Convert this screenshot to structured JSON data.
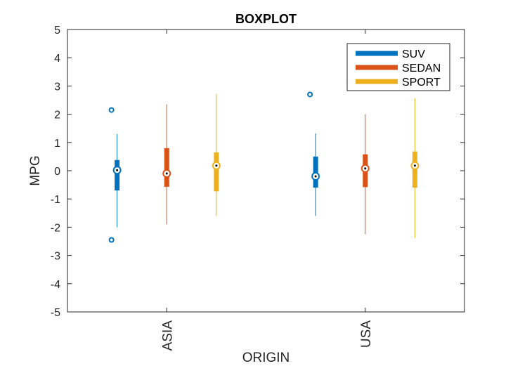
{
  "chart_data": {
    "type": "boxplot",
    "title": "BOXPLOT",
    "xlabel": "ORIGIN",
    "ylabel": "MPG",
    "ylim": [
      -5,
      5
    ],
    "yticks": [
      -5,
      -4,
      -3,
      -2,
      -1,
      0,
      1,
      2,
      3,
      4,
      5
    ],
    "categories": [
      "ASIA",
      "USA"
    ],
    "legend_position": "top-right",
    "series": [
      {
        "name": "SUV",
        "color": "#0072BD",
        "boxes": [
          {
            "whisker_low": -2.0,
            "q1": -0.7,
            "median": 0.02,
            "q3": 0.38,
            "whisker_high": 1.3,
            "outliers": [
              2.15,
              -2.45
            ]
          },
          {
            "whisker_low": -1.6,
            "q1": -0.6,
            "median": -0.2,
            "q3": 0.5,
            "whisker_high": 1.32,
            "outliers": [
              2.7
            ]
          }
        ]
      },
      {
        "name": "SEDAN",
        "color": "#D95319",
        "boxes": [
          {
            "whisker_low": -1.9,
            "q1": -0.57,
            "median": -0.1,
            "q3": 0.8,
            "whisker_high": 2.35,
            "outliers": []
          },
          {
            "whisker_low": -2.25,
            "q1": -0.58,
            "median": 0.08,
            "q3": 0.58,
            "whisker_high": 2.0,
            "outliers": []
          }
        ]
      },
      {
        "name": "SPORT",
        "color": "#EDB120",
        "boxes": [
          {
            "whisker_low": -1.6,
            "q1": -0.73,
            "median": 0.18,
            "q3": 0.65,
            "whisker_high": 2.72,
            "outliers": []
          },
          {
            "whisker_low": -2.38,
            "q1": -0.6,
            "median": 0.18,
            "q3": 0.68,
            "whisker_high": 2.57,
            "outliers": []
          }
        ]
      }
    ]
  }
}
